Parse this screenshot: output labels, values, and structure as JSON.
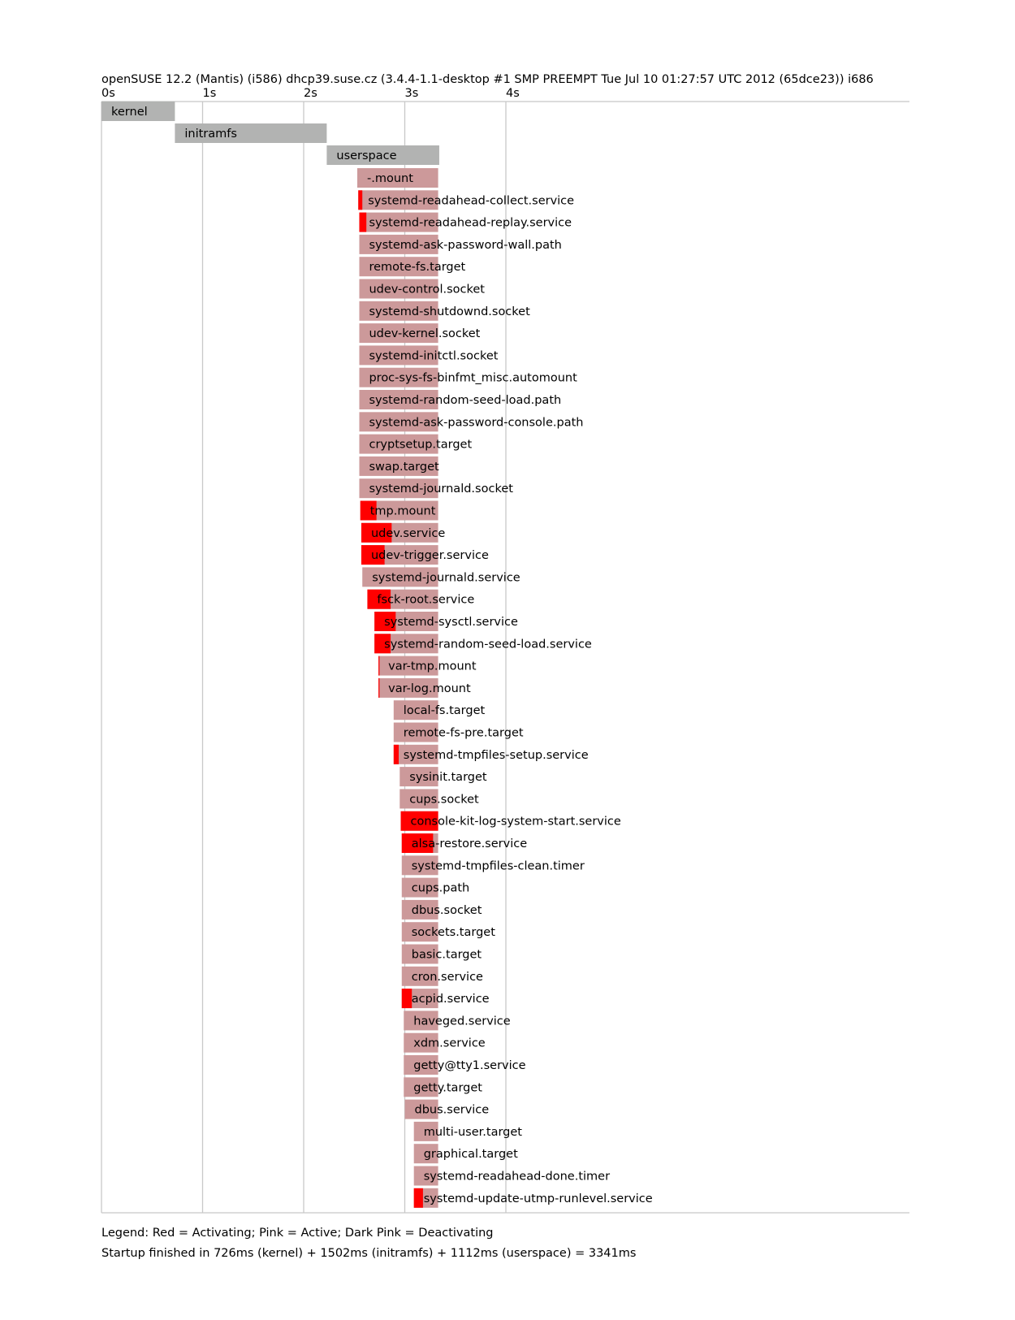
{
  "chart_data": {
    "type": "bar",
    "title": "openSUSE 12.2 (Mantis) (i586) dhcp39.suse.cz (3.4.4-1.1-desktop #1 SMP PREEMPT Tue Jul 10 01:27:57 UTC 2012 (65dce23)) i686",
    "xlim": [
      0,
      8
    ],
    "x_ticks": [
      "0s",
      "1s",
      "2s",
      "3s",
      "4s"
    ],
    "colors": {
      "phase": "#b2b3b2",
      "active": "#cc999a",
      "activating": "#ff0000",
      "grid": "#c8c8c8"
    },
    "phases": [
      {
        "name": "kernel",
        "start": 0.0,
        "end": 0.726
      },
      {
        "name": "initramfs",
        "start": 0.726,
        "end": 2.228
      },
      {
        "name": "userspace",
        "start": 2.228,
        "end": 3.341
      }
    ],
    "units": [
      {
        "name": "-.mount",
        "start": 2.53,
        "act": 2.53,
        "end": 3.33
      },
      {
        "name": "systemd-readahead-collect.service",
        "start": 2.54,
        "act": 2.58,
        "end": 3.33
      },
      {
        "name": "systemd-readahead-replay.service",
        "start": 2.55,
        "act": 2.62,
        "end": 3.33
      },
      {
        "name": "systemd-ask-password-wall.path",
        "start": 2.55,
        "act": 2.55,
        "end": 3.33
      },
      {
        "name": "remote-fs.target",
        "start": 2.55,
        "act": 2.55,
        "end": 3.33
      },
      {
        "name": "udev-control.socket",
        "start": 2.55,
        "act": 2.55,
        "end": 3.33
      },
      {
        "name": "systemd-shutdownd.socket",
        "start": 2.55,
        "act": 2.55,
        "end": 3.33
      },
      {
        "name": "udev-kernel.socket",
        "start": 2.55,
        "act": 2.55,
        "end": 3.33
      },
      {
        "name": "systemd-initctl.socket",
        "start": 2.55,
        "act": 2.55,
        "end": 3.33
      },
      {
        "name": "proc-sys-fs-binfmt_misc.automount",
        "start": 2.55,
        "act": 2.55,
        "end": 3.33
      },
      {
        "name": "systemd-random-seed-load.path",
        "start": 2.55,
        "act": 2.55,
        "end": 3.33
      },
      {
        "name": "systemd-ask-password-console.path",
        "start": 2.55,
        "act": 2.55,
        "end": 3.33
      },
      {
        "name": "cryptsetup.target",
        "start": 2.55,
        "act": 2.55,
        "end": 3.33
      },
      {
        "name": "swap.target",
        "start": 2.55,
        "act": 2.55,
        "end": 3.33
      },
      {
        "name": "systemd-journald.socket",
        "start": 2.55,
        "act": 2.55,
        "end": 3.33
      },
      {
        "name": "tmp.mount",
        "start": 2.56,
        "act": 2.72,
        "end": 3.33
      },
      {
        "name": "udev.service",
        "start": 2.57,
        "act": 2.87,
        "end": 3.33
      },
      {
        "name": "udev-trigger.service",
        "start": 2.57,
        "act": 2.8,
        "end": 3.33
      },
      {
        "name": "systemd-journald.service",
        "start": 2.58,
        "act": 2.58,
        "end": 3.33
      },
      {
        "name": "fsck-root.service",
        "start": 2.63,
        "act": 2.86,
        "end": 3.33
      },
      {
        "name": "systemd-sysctl.service",
        "start": 2.7,
        "act": 2.91,
        "end": 3.33
      },
      {
        "name": "systemd-random-seed-load.service",
        "start": 2.7,
        "act": 2.86,
        "end": 3.33
      },
      {
        "name": "var-tmp.mount",
        "start": 2.74,
        "act": 2.75,
        "end": 3.33
      },
      {
        "name": "var-log.mount",
        "start": 2.74,
        "act": 2.75,
        "end": 3.33
      },
      {
        "name": "local-fs.target",
        "start": 2.89,
        "act": 2.89,
        "end": 3.33
      },
      {
        "name": "remote-fs-pre.target",
        "start": 2.89,
        "act": 2.89,
        "end": 3.33
      },
      {
        "name": "systemd-tmpfiles-setup.service",
        "start": 2.89,
        "act": 2.94,
        "end": 3.33
      },
      {
        "name": "sysinit.target",
        "start": 2.95,
        "act": 2.95,
        "end": 3.33
      },
      {
        "name": "cups.socket",
        "start": 2.95,
        "act": 2.95,
        "end": 3.33
      },
      {
        "name": "console-kit-log-system-start.service",
        "start": 2.96,
        "act": 3.33,
        "end": 3.33
      },
      {
        "name": "alsa-restore.service",
        "start": 2.97,
        "act": 3.28,
        "end": 3.33
      },
      {
        "name": "systemd-tmpfiles-clean.timer",
        "start": 2.97,
        "act": 2.97,
        "end": 3.33
      },
      {
        "name": "cups.path",
        "start": 2.97,
        "act": 2.97,
        "end": 3.33
      },
      {
        "name": "dbus.socket",
        "start": 2.97,
        "act": 2.97,
        "end": 3.33
      },
      {
        "name": "sockets.target",
        "start": 2.97,
        "act": 2.97,
        "end": 3.33
      },
      {
        "name": "basic.target",
        "start": 2.97,
        "act": 2.97,
        "end": 3.33
      },
      {
        "name": "cron.service",
        "start": 2.97,
        "act": 2.97,
        "end": 3.33
      },
      {
        "name": "acpid.service",
        "start": 2.97,
        "act": 3.07,
        "end": 3.33
      },
      {
        "name": "haveged.service",
        "start": 2.99,
        "act": 2.99,
        "end": 3.33
      },
      {
        "name": "xdm.service",
        "start": 2.99,
        "act": 2.99,
        "end": 3.33
      },
      {
        "name": "getty@tty1.service",
        "start": 2.99,
        "act": 2.99,
        "end": 3.33
      },
      {
        "name": "getty.target",
        "start": 2.99,
        "act": 2.99,
        "end": 3.33
      },
      {
        "name": "dbus.service",
        "start": 3.0,
        "act": 3.0,
        "end": 3.33
      },
      {
        "name": "multi-user.target",
        "start": 3.09,
        "act": 3.09,
        "end": 3.33
      },
      {
        "name": "graphical.target",
        "start": 3.09,
        "act": 3.09,
        "end": 3.33
      },
      {
        "name": "systemd-readahead-done.timer",
        "start": 3.09,
        "act": 3.09,
        "end": 3.33
      },
      {
        "name": "systemd-update-utmp-runlevel.service",
        "start": 3.09,
        "act": 3.18,
        "end": 3.33
      }
    ]
  },
  "legend": "Legend: Red = Activating; Pink = Active; Dark Pink = Deactivating",
  "summary": "Startup finished in 726ms (kernel) + 1502ms (initramfs) + 1112ms (userspace) = 3341ms"
}
